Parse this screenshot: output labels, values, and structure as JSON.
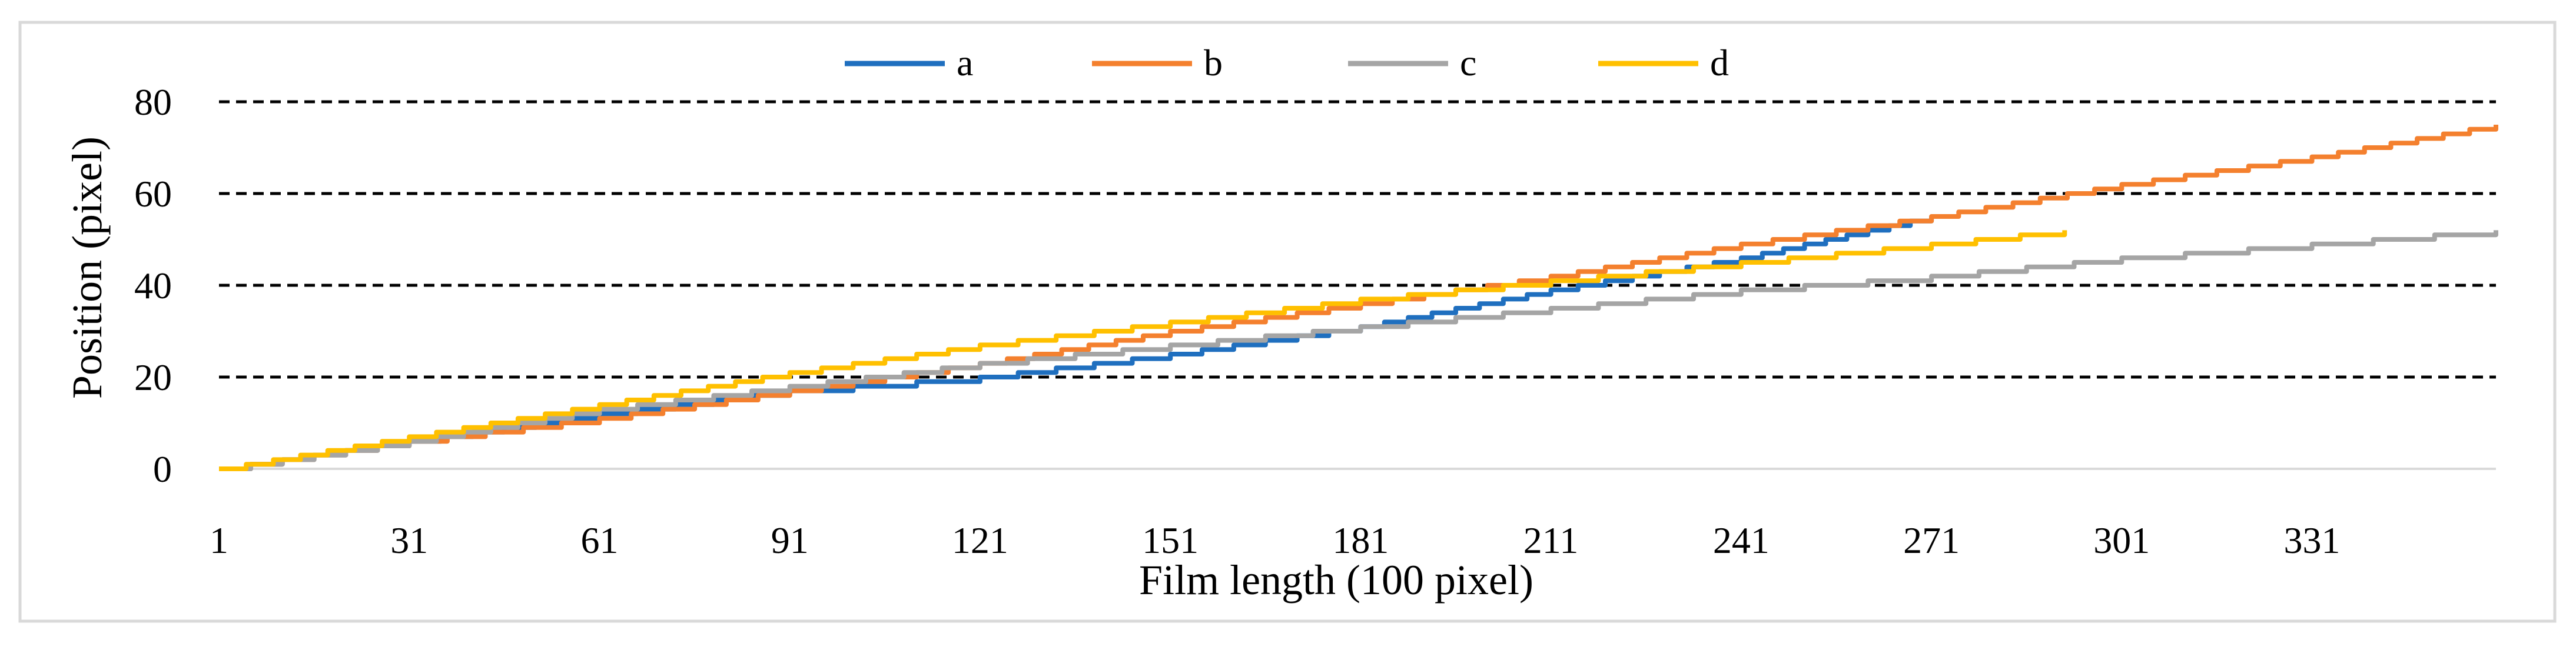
{
  "chart_data": {
    "type": "line",
    "title": "",
    "xlabel": "Film length (100 pixel)",
    "ylabel": "Position (pixel)",
    "xlim": [
      1,
      360
    ],
    "ylim": [
      0,
      80
    ],
    "x_ticks": [
      1,
      31,
      61,
      91,
      121,
      151,
      181,
      211,
      241,
      271,
      301,
      331
    ],
    "y_ticks": [
      0,
      20,
      40,
      60,
      80
    ],
    "grid": "horizontal-dashed",
    "legend_position": "top",
    "series": [
      {
        "name": "a",
        "color": "#1F6FBF",
        "x": [
          1,
          31,
          61,
          91,
          121,
          151,
          181,
          211,
          241,
          271
        ],
        "y": [
          0,
          6,
          12,
          17,
          20,
          25,
          31,
          39,
          46,
          55
        ]
      },
      {
        "name": "b",
        "color": "#F4802E",
        "x": [
          1,
          31,
          61,
          91,
          121,
          151,
          181,
          211,
          241,
          271,
          301,
          331,
          360
        ],
        "y": [
          0,
          6,
          11,
          17,
          23,
          30,
          36,
          42,
          49,
          55,
          62,
          68,
          75
        ]
      },
      {
        "name": "c",
        "color": "#A5A5A5",
        "x": [
          1,
          31,
          61,
          91,
          121,
          151,
          181,
          211,
          241,
          271,
          301,
          331,
          360
        ],
        "y": [
          0,
          6,
          13,
          18,
          23,
          27,
          31,
          35,
          39,
          42,
          46,
          49,
          52
        ]
      },
      {
        "name": "d",
        "color": "#FFC000",
        "x": [
          1,
          31,
          61,
          91,
          121,
          151,
          181,
          211,
          241,
          271,
          292
        ],
        "y": [
          0,
          7,
          14,
          21,
          27,
          32,
          37,
          41,
          45,
          49,
          52
        ]
      }
    ]
  }
}
